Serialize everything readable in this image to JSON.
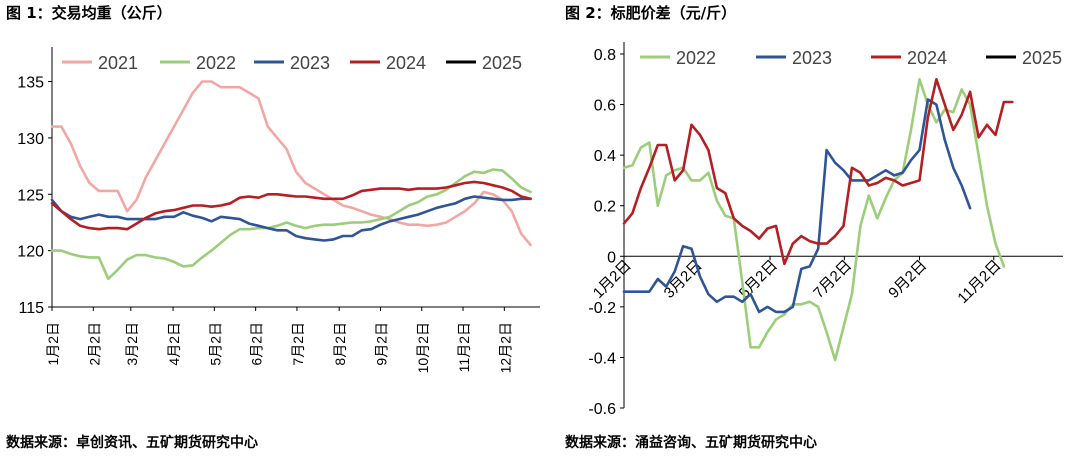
{
  "left_title": "图 1：交易均重（公斤）",
  "right_title": "图 2：标肥价差（元/斤）",
  "left_source": "数据来源：卓创资讯、五矿期货研究中心",
  "right_source": "数据来源：涌益咨询、五矿期货研究中心",
  "colors": {
    "2021": "#f2a7a5",
    "2022": "#9ccd7a",
    "2023": "#2f5597",
    "2024": "#b51f24",
    "2025": "#000000"
  },
  "chart_data": [
    {
      "type": "line",
      "title": "图 1：交易均重（公斤）",
      "ylim": [
        115,
        137
      ],
      "yticks": [
        115,
        120,
        125,
        130,
        135
      ],
      "xlim": [
        0,
        52
      ],
      "xtick_labels": [
        "1月2日",
        "2月2日",
        "3月2日",
        "4月2日",
        "5月2日",
        "6月2日",
        "7月2日",
        "8月2日",
        "9月2日",
        "10月2日",
        "11月2日",
        "12月2日"
      ],
      "xtick_pos": [
        0,
        4.4,
        8.4,
        12.9,
        17.3,
        21.7,
        26.1,
        30.6,
        35.0,
        39.4,
        43.8,
        48.2
      ],
      "legend": [
        "2021",
        "2022",
        "2023",
        "2024",
        "2025"
      ],
      "series": [
        {
          "name": "2021",
          "values": [
            131,
            131,
            129.5,
            127.5,
            126,
            125.3,
            125.3,
            125.3,
            123.5,
            124.5,
            126.5,
            128,
            129.5,
            131,
            132.5,
            134,
            135,
            135,
            134.5,
            134.5,
            134.5,
            134,
            133.5,
            131,
            130,
            129,
            127,
            126,
            125.5,
            125,
            124.5,
            124,
            123.8,
            123.5,
            123.2,
            123,
            122.8,
            122.5,
            122.3,
            122.3,
            122.2,
            122.3,
            122.5,
            123,
            123.5,
            124.2,
            125.2,
            125,
            124.5,
            123.5,
            121.5,
            120.5
          ]
        },
        {
          "name": "2022",
          "values": [
            120,
            120,
            119.7,
            119.5,
            119.4,
            119.4,
            117.5,
            118.3,
            119.2,
            119.6,
            119.6,
            119.4,
            119.3,
            119,
            118.6,
            118.7,
            119.4,
            120,
            120.7,
            121.4,
            121.9,
            121.9,
            122,
            122,
            122.2,
            122.5,
            122.2,
            122,
            122.2,
            122.3,
            122.3,
            122.4,
            122.5,
            122.5,
            122.6,
            122.8,
            123,
            123.5,
            124,
            124.3,
            124.8,
            125,
            125.4,
            126,
            126.6,
            127,
            126.9,
            127.2,
            127.1,
            126.4,
            125.6,
            125.2
          ]
        },
        {
          "name": "2023",
          "values": [
            124.5,
            123.5,
            123,
            122.8,
            123,
            123.2,
            123,
            123,
            122.8,
            122.8,
            122.8,
            122.8,
            123,
            123,
            123.4,
            123.1,
            122.9,
            122.6,
            123,
            122.9,
            122.8,
            122.4,
            122.2,
            122,
            121.8,
            121.8,
            121.3,
            121.1,
            121,
            120.9,
            121,
            121.3,
            121.3,
            121.8,
            121.9,
            122.3,
            122.6,
            122.8,
            123,
            123.2,
            123.5,
            123.8,
            124,
            124.2,
            124.6,
            124.8,
            124.7,
            124.6,
            124.5,
            124.5,
            124.6,
            124.6
          ]
        },
        {
          "name": "2024",
          "values": [
            124.2,
            123.5,
            122.8,
            122.2,
            122,
            121.9,
            122,
            122,
            121.9,
            122.4,
            122.9,
            123.3,
            123.5,
            123.6,
            123.8,
            124,
            124,
            123.9,
            124,
            124.2,
            124.7,
            124.8,
            124.7,
            125,
            125,
            124.9,
            124.8,
            124.8,
            124.7,
            124.6,
            124.6,
            124.6,
            124.9,
            125.3,
            125.4,
            125.5,
            125.5,
            125.5,
            125.4,
            125.5,
            125.5,
            125.5,
            125.6,
            125.8,
            126,
            126.1,
            126,
            125.8,
            125.6,
            125.3,
            124.8,
            124.6
          ]
        }
      ]
    },
    {
      "type": "line",
      "title": "图 2：标肥价差（元/斤）",
      "ylim": [
        -0.6,
        0.8
      ],
      "yticks": [
        -0.6,
        -0.4,
        -0.2,
        0,
        0.2,
        0.4,
        0.6,
        0.8
      ],
      "ytick_labels": [
        "-0.6",
        "-0.4",
        "-0.2",
        "0",
        "0.2",
        "0.4",
        "0.6",
        "0.8"
      ],
      "xlim": [
        0,
        52
      ],
      "xtick_labels": [
        "1月2日",
        "3月2日",
        "5月2日",
        "7月2日",
        "9月2日",
        "11月2日"
      ],
      "xtick_pos": [
        0,
        8.4,
        17.3,
        26.1,
        35.0,
        43.8
      ],
      "legend": [
        "2022",
        "2023",
        "2024",
        "2025"
      ],
      "series": [
        {
          "name": "2022",
          "values": [
            0.35,
            0.36,
            0.43,
            0.45,
            0.2,
            0.32,
            0.34,
            0.35,
            0.3,
            0.3,
            0.33,
            0.22,
            0.16,
            0.15,
            -0.1,
            -0.36,
            -0.36,
            -0.3,
            -0.25,
            -0.23,
            -0.19,
            -0.19,
            -0.18,
            -0.2,
            -0.3,
            -0.41,
            -0.28,
            -0.15,
            0.12,
            0.24,
            0.15,
            0.23,
            0.3,
            0.33,
            0.5,
            0.7,
            0.6,
            0.53,
            0.58,
            0.57,
            0.66,
            0.6,
            0.4,
            0.2,
            0.05,
            -0.04
          ]
        },
        {
          "name": "2023",
          "values": [
            -0.14,
            -0.14,
            -0.14,
            -0.14,
            -0.09,
            -0.12,
            -0.06,
            0.04,
            0.03,
            -0.08,
            -0.15,
            -0.18,
            -0.16,
            -0.16,
            -0.18,
            -0.15,
            -0.22,
            -0.2,
            -0.22,
            -0.22,
            -0.2,
            -0.05,
            -0.04,
            0.03,
            0.42,
            0.37,
            0.34,
            0.3,
            0.3,
            0.3,
            0.32,
            0.34,
            0.32,
            0.33,
            0.38,
            0.42,
            0.62,
            0.6,
            0.46,
            0.35,
            0.28,
            0.19
          ]
        },
        {
          "name": "2024",
          "values": [
            0.13,
            0.17,
            0.27,
            0.35,
            0.44,
            0.44,
            0.3,
            0.34,
            0.52,
            0.48,
            0.42,
            0.27,
            0.25,
            0.15,
            0.12,
            0.1,
            0.07,
            0.11,
            0.12,
            -0.03,
            0.05,
            0.08,
            0.06,
            0.05,
            0.05,
            0.08,
            0.12,
            0.35,
            0.33,
            0.28,
            0.29,
            0.31,
            0.3,
            0.28,
            0.29,
            0.3,
            0.55,
            0.7,
            0.6,
            0.5,
            0.56,
            0.65,
            0.47,
            0.52,
            0.48,
            0.61,
            0.61
          ]
        }
      ]
    }
  ]
}
